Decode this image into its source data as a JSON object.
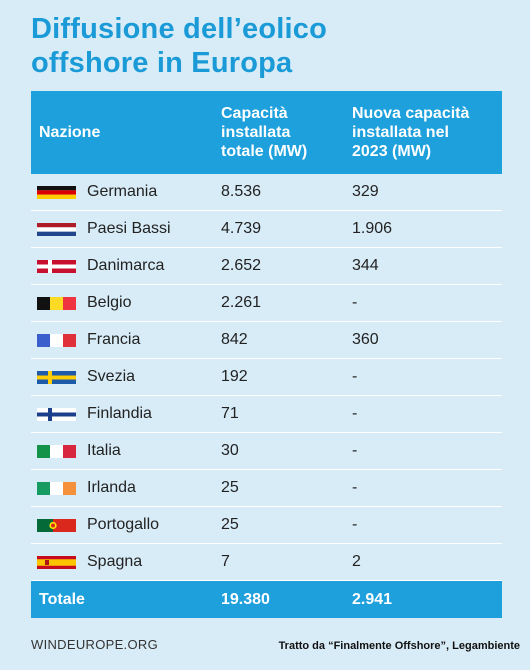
{
  "title_line1": "Diffusione dell’eolico",
  "title_line2": "offshore in Europa",
  "header": {
    "col1": "Nazione",
    "col2_l1": "Capacità",
    "col2_l2": "installata",
    "col2_l3": "totale (MW)",
    "col3_l1": "Nuova capacità",
    "col3_l2": "installata nel",
    "col3_l3": "2023 (MW)"
  },
  "rows": [
    {
      "country": "Germania",
      "total": "8.536",
      "new": "329",
      "flag": "germany-flag-icon"
    },
    {
      "country": "Paesi Bassi",
      "total": "4.739",
      "new": "1.906",
      "flag": "netherlands-flag-icon"
    },
    {
      "country": "Danimarca",
      "total": "2.652",
      "new": "344",
      "flag": "denmark-flag-icon"
    },
    {
      "country": "Belgio",
      "total": "2.261",
      "new": "-",
      "flag": "belgium-flag-icon"
    },
    {
      "country": "Francia",
      "total": "842",
      "new": "360",
      "flag": "france-flag-icon"
    },
    {
      "country": "Svezia",
      "total": "192",
      "new": "-",
      "flag": "sweden-flag-icon"
    },
    {
      "country": "Finlandia",
      "total": "71",
      "new": "-",
      "flag": "finland-flag-icon"
    },
    {
      "country": "Italia",
      "total": "30",
      "new": "-",
      "flag": "italy-flag-icon"
    },
    {
      "country": "Irlanda",
      "total": "25",
      "new": "-",
      "flag": "ireland-flag-icon"
    },
    {
      "country": "Portogallo",
      "total": "25",
      "new": "-",
      "flag": "portugal-flag-icon"
    },
    {
      "country": "Spagna",
      "total": "7",
      "new": "2",
      "flag": "spain-flag-icon"
    }
  ],
  "total": {
    "label": "Totale",
    "total": "19.380",
    "new": "2.941"
  },
  "footer_source": "WINDEUROPE.ORG",
  "footer_credit": "Tratto da “Finalmente Offshore”, Legambiente",
  "colors": {
    "background": "#d8ecf7",
    "accent": "#1ea0dc",
    "title": "#1a9ad6"
  }
}
